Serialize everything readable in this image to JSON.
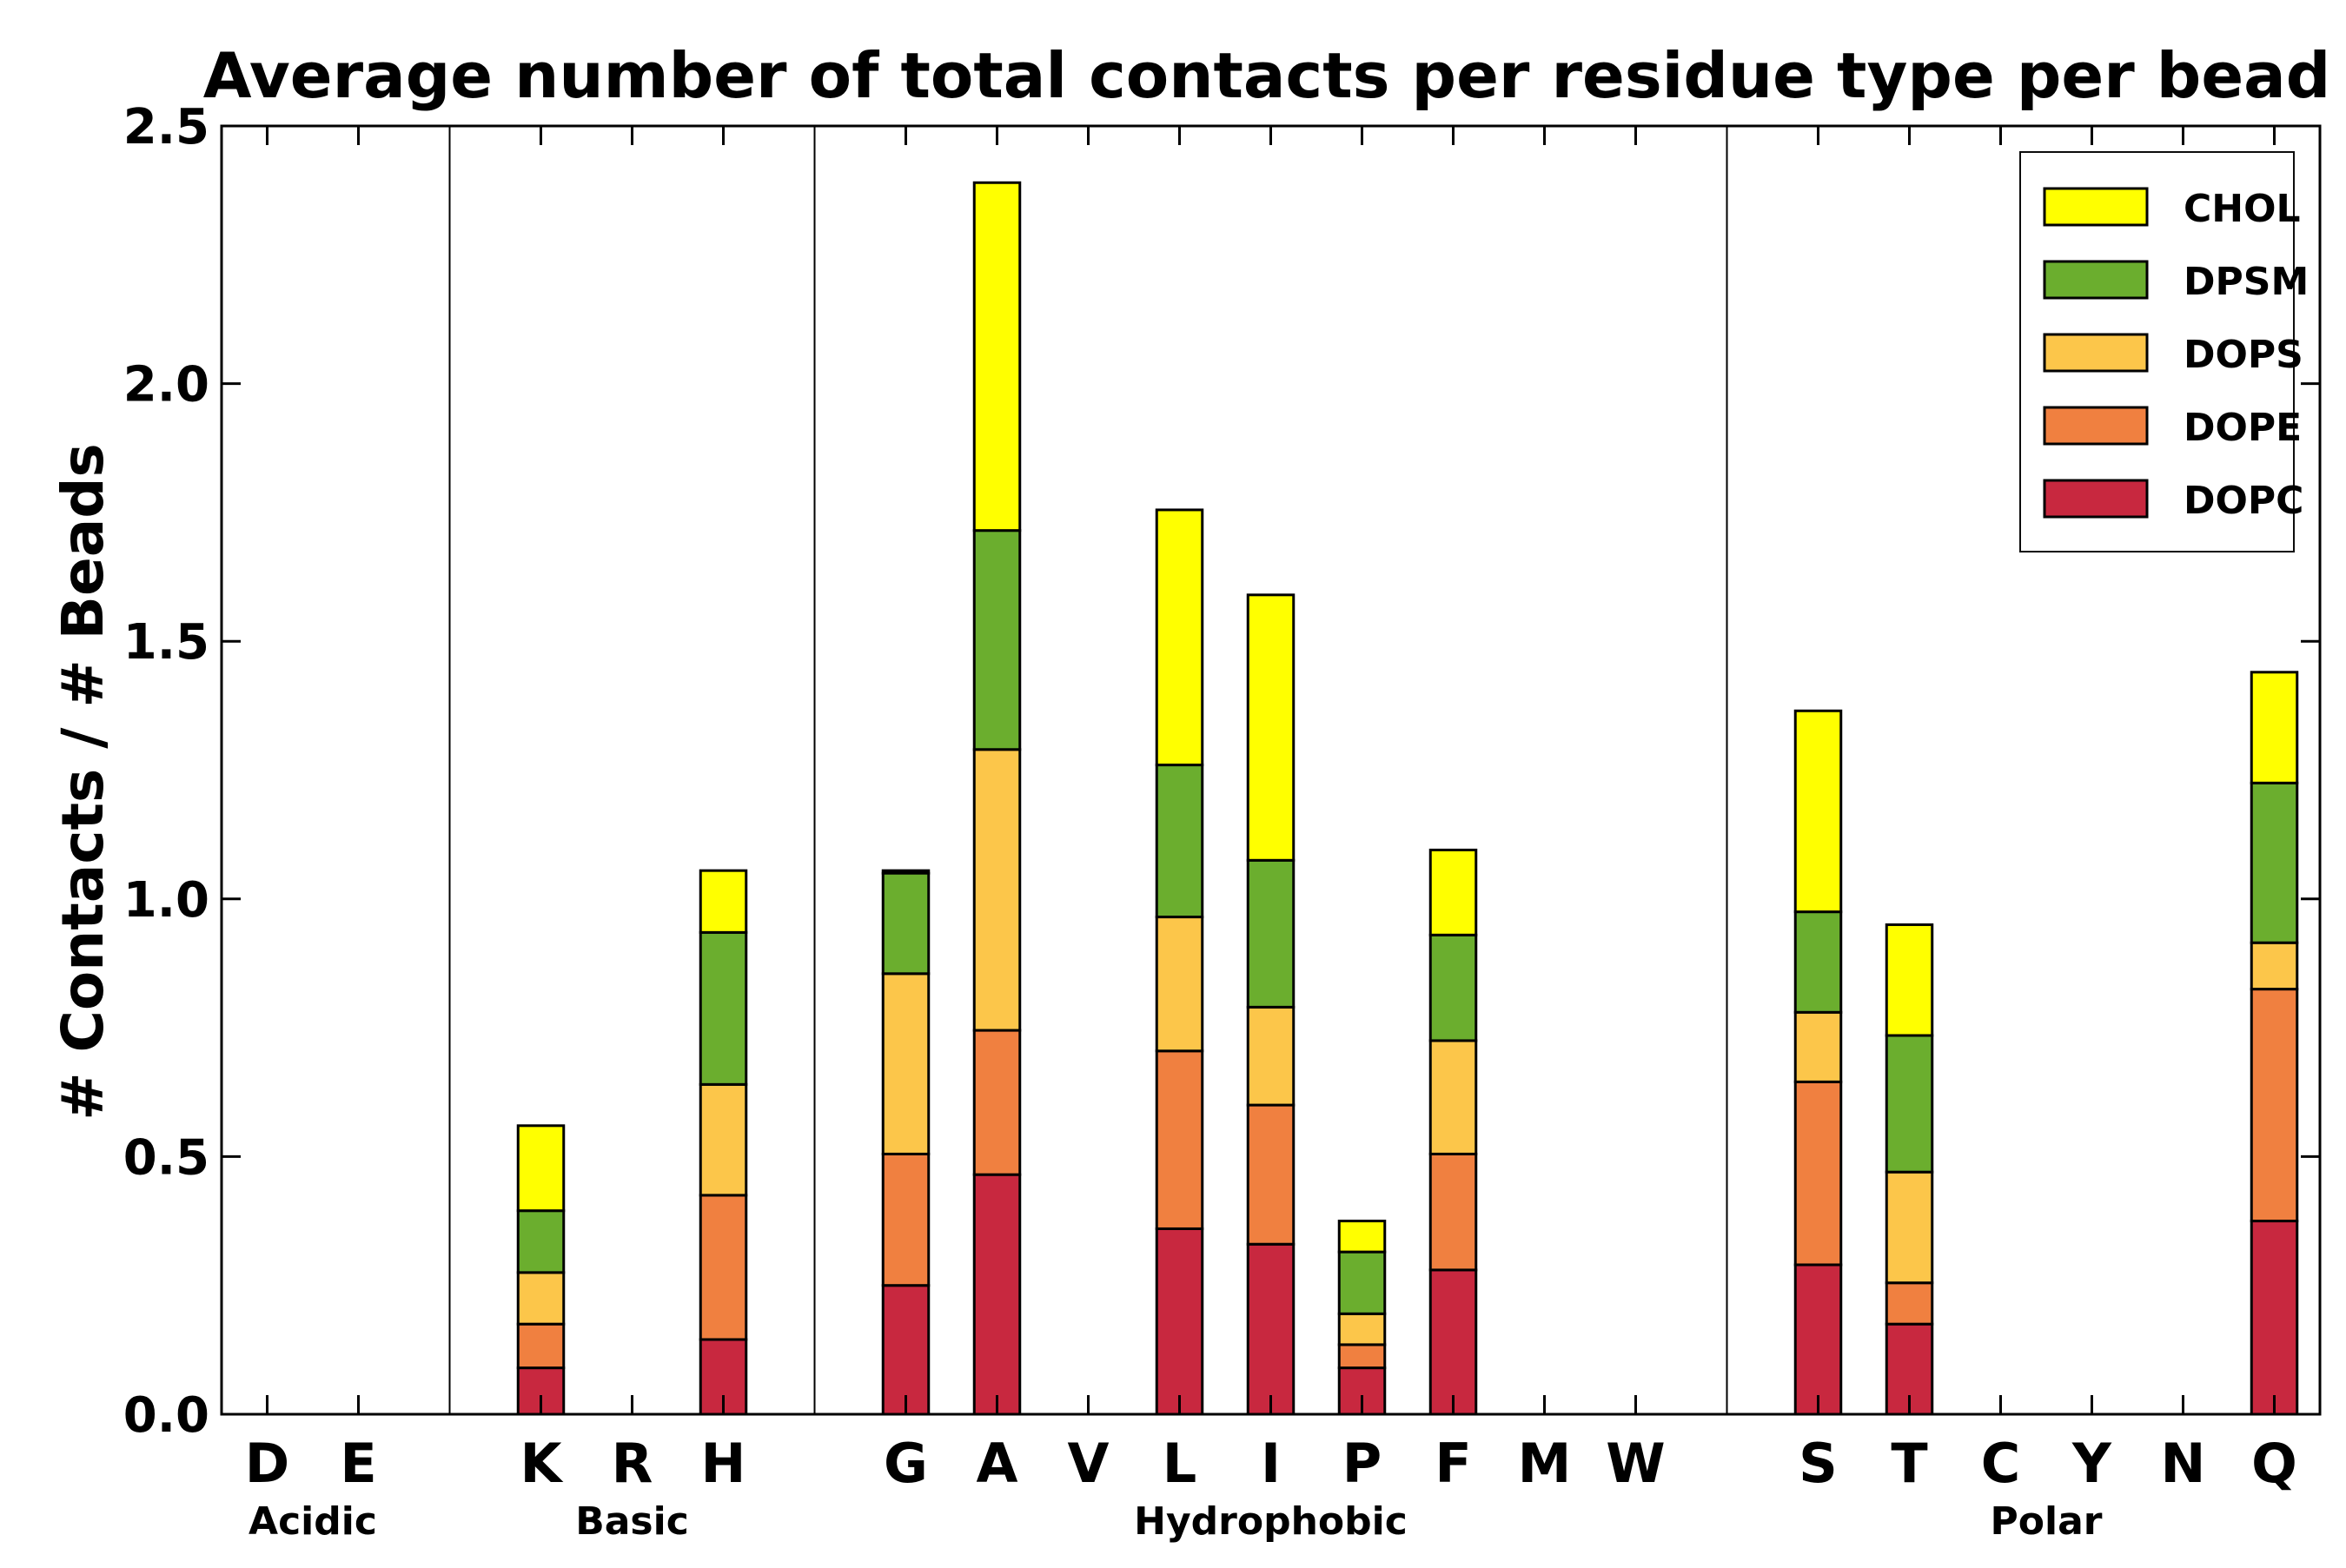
{
  "chart_data": {
    "type": "bar",
    "stacked": true,
    "title": "Average number of total contacts per residue type per bead",
    "xlabel": "",
    "ylabel": "# Contacts / # Beads",
    "ylim": [
      0,
      2.5
    ],
    "yticks": [
      "0.0",
      "0.5",
      "1.0",
      "1.5",
      "2.0",
      "2.5"
    ],
    "grid": false,
    "legend_position": "top-right",
    "categories": [
      "D",
      "E",
      "",
      "K",
      "R",
      "H",
      "",
      "G",
      "A",
      "V",
      "L",
      "I",
      "P",
      "F",
      "M",
      "W",
      "",
      "S",
      "T",
      "C",
      "Y",
      "N",
      "Q"
    ],
    "groups": [
      {
        "label": "Acidic",
        "members": [
          "D",
          "E"
        ]
      },
      {
        "label": "Basic",
        "members": [
          "K",
          "R",
          "H"
        ]
      },
      {
        "label": "Hydrophobic",
        "members": [
          "G",
          "A",
          "V",
          "L",
          "I",
          "P",
          "F",
          "M",
          "W"
        ]
      },
      {
        "label": "Polar",
        "members": [
          "S",
          "T",
          "C",
          "Y",
          "N",
          "Q"
        ]
      }
    ],
    "series": [
      {
        "name": "DOPC",
        "color": "#C8283F",
        "values": [
          0,
          0,
          0,
          0.09,
          0,
          0.145,
          0,
          0.25,
          0.465,
          0,
          0.36,
          0.33,
          0.09,
          0.28,
          0,
          0,
          0,
          0.29,
          0.175,
          0,
          0,
          0,
          0.375
        ]
      },
      {
        "name": "DOPE",
        "color": "#F08040",
        "values": [
          0,
          0,
          0,
          0.085,
          0,
          0.28,
          0,
          0.255,
          0.28,
          0,
          0.345,
          0.27,
          0.045,
          0.225,
          0,
          0,
          0,
          0.355,
          0.08,
          0,
          0,
          0,
          0.45
        ]
      },
      {
        "name": "DOPS",
        "color": "#FCC64A",
        "values": [
          0,
          0,
          0,
          0.1,
          0,
          0.215,
          0,
          0.35,
          0.545,
          0,
          0.26,
          0.19,
          0.06,
          0.22,
          0,
          0,
          0,
          0.135,
          0.215,
          0,
          0,
          0,
          0.09
        ]
      },
      {
        "name": "DPSM",
        "color": "#6BAE2E",
        "values": [
          0,
          0,
          0,
          0.12,
          0,
          0.295,
          0,
          0.195,
          0.425,
          0,
          0.295,
          0.285,
          0.12,
          0.205,
          0,
          0,
          0,
          0.195,
          0.265,
          0,
          0,
          0,
          0.31
        ]
      },
      {
        "name": "CHOL",
        "color": "#FFFF00",
        "values": [
          0,
          0,
          0,
          0.165,
          0,
          0.12,
          0,
          0.005,
          0.675,
          0,
          0.495,
          0.515,
          0.06,
          0.165,
          0,
          0,
          0,
          0.39,
          0.215,
          0,
          0,
          0,
          0.215
        ]
      }
    ]
  }
}
